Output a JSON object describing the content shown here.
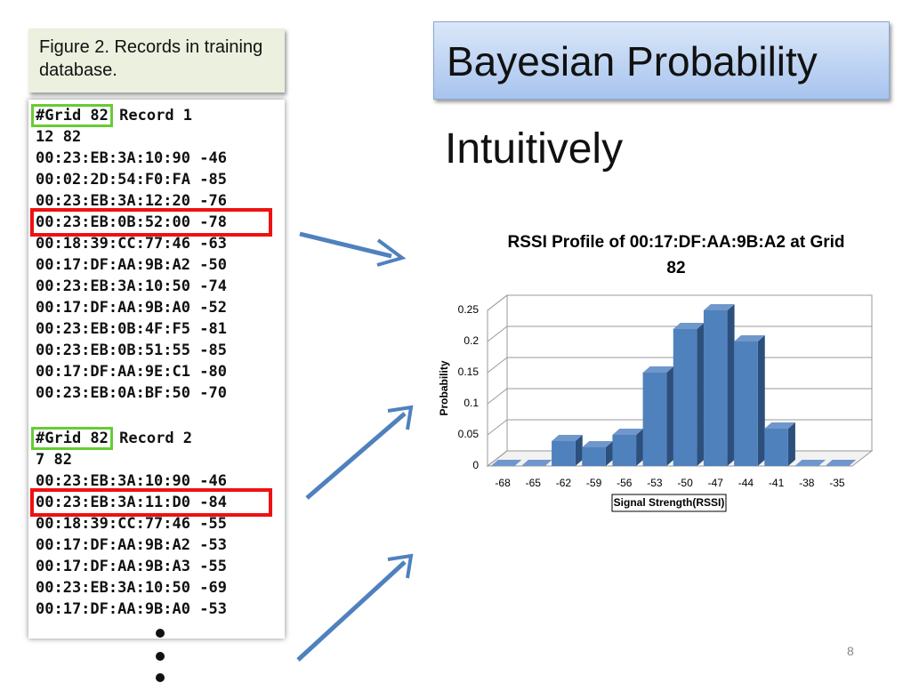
{
  "slide": {
    "title": "Bayesian Probability",
    "heading": "Intuitively",
    "page_number": "8"
  },
  "figure": {
    "caption": "Figure 2. Records in training database.",
    "records": [
      {
        "grid": "#Grid 82",
        "record": "Record 1",
        "lines": [
          "12 82",
          "00:23:EB:3A:10:90 -46",
          "00:02:2D:54:F0:FA -85",
          "00:23:EB:3A:12:20 -76",
          "00:23:EB:0B:52:00 -78",
          "00:18:39:CC:77:46 -63",
          "00:17:DF:AA:9B:A2 -50",
          "00:23:EB:3A:10:50 -74",
          "00:17:DF:AA:9B:A0 -52",
          "00:23:EB:0B:4F:F5 -81",
          "00:23:EB:0B:51:55 -85",
          "00:17:DF:AA:9E:C1 -80",
          "00:23:EB:0A:BF:50 -70"
        ]
      },
      {
        "grid": "#Grid 82",
        "record": "Record 2",
        "lines": [
          "7 82",
          "00:23:EB:3A:10:90 -46",
          "00:23:EB:3A:11:D0 -84",
          "00:18:39:CC:77:46 -55",
          "00:17:DF:AA:9B:A2 -53",
          "00:17:DF:AA:9B:A3 -55",
          "00:23:EB:3A:10:50 -69",
          "00:17:DF:AA:9B:A0 -53"
        ]
      }
    ]
  },
  "chart_data": {
    "type": "bar",
    "title": "RSSI Profile of 00:17:DF:AA:9B:A2 at Grid 82",
    "x_label": "Signal Strength(RSSI)",
    "y_label": "Probability",
    "categories": [
      "-68",
      "-65",
      "-62",
      "-59",
      "-56",
      "-53",
      "-50",
      "-47",
      "-44",
      "-41",
      "-38",
      "-35"
    ],
    "values": [
      0,
      0,
      0.04,
      0.03,
      0.05,
      0.15,
      0.22,
      0.25,
      0.2,
      0.06,
      0,
      0
    ],
    "color": "#4f81bd",
    "ylim": [
      0,
      0.25
    ],
    "yticks": [
      0,
      0.05,
      0.1,
      0.15,
      0.2,
      0.25
    ],
    "grid": true
  }
}
